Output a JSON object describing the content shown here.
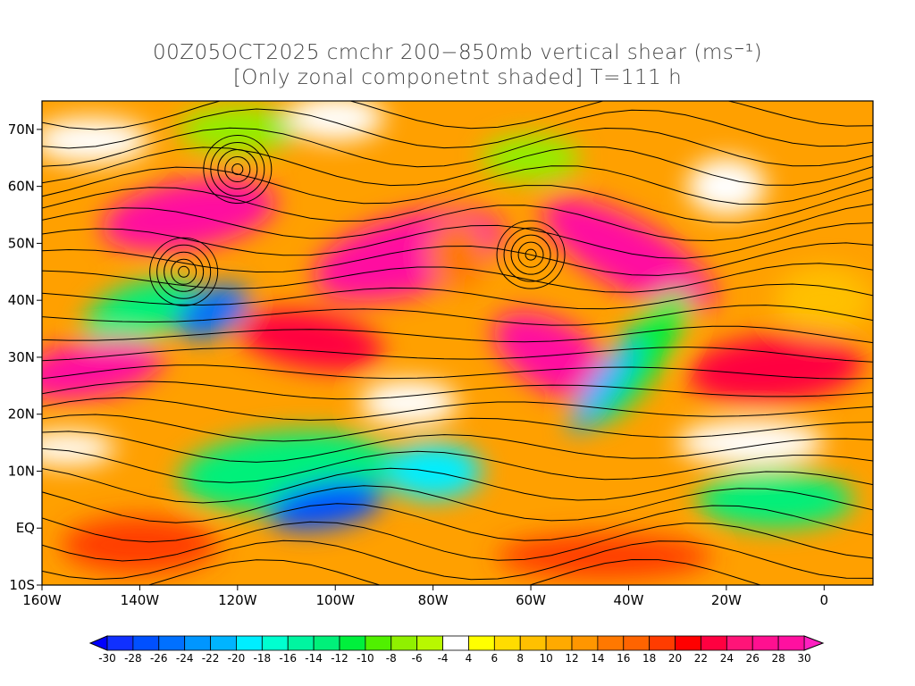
{
  "title": {
    "line1": "00Z05OCT2025 cmchr 200−850mb vertical shear (ms⁻¹)",
    "line2": "[Only zonal componetnt shaded] T=111 h"
  },
  "map": {
    "lon_range": [
      -160,
      10
    ],
    "lat_range": [
      -10,
      75
    ],
    "x_ticks": [
      {
        "value": -160,
        "label": "160W"
      },
      {
        "value": -140,
        "label": "140W"
      },
      {
        "value": -120,
        "label": "120W"
      },
      {
        "value": -100,
        "label": "100W"
      },
      {
        "value": -80,
        "label": "80W"
      },
      {
        "value": -60,
        "label": "60W"
      },
      {
        "value": -40,
        "label": "40W"
      },
      {
        "value": -20,
        "label": "20W"
      },
      {
        "value": 0,
        "label": "0"
      }
    ],
    "y_ticks": [
      {
        "value": 70,
        "label": "70N"
      },
      {
        "value": 60,
        "label": "60N"
      },
      {
        "value": 50,
        "label": "50N"
      },
      {
        "value": 40,
        "label": "40N"
      },
      {
        "value": 30,
        "label": "30N"
      },
      {
        "value": 20,
        "label": "20N"
      },
      {
        "value": 10,
        "label": "10N"
      },
      {
        "value": 0,
        "label": "EQ"
      },
      {
        "value": -10,
        "label": "10S"
      }
    ]
  },
  "colorbar": {
    "labels": [
      "-30",
      "-28",
      "-26",
      "-24",
      "-22",
      "-20",
      "-18",
      "-16",
      "-14",
      "-12",
      "-10",
      "-8",
      "-6",
      "-4",
      "4",
      "6",
      "8",
      "10",
      "12",
      "14",
      "16",
      "18",
      "20",
      "22",
      "24",
      "26",
      "28",
      "30"
    ],
    "colors": [
      "#1030ff",
      "#0050ff",
      "#0070ff",
      "#0096ff",
      "#00b4ff",
      "#00eeff",
      "#00ffd0",
      "#00f5a0",
      "#00f07a",
      "#00f03c",
      "#50f000",
      "#90f000",
      "#b8f800",
      "#ffffff",
      "#ffff00",
      "#ffdc00",
      "#ffc000",
      "#ffaa00",
      "#ff9600",
      "#ff7800",
      "#ff6400",
      "#ff3c00",
      "#ff0000",
      "#ff0040",
      "#ff1478",
      "#ff1090",
      "#ff10a0"
    ],
    "under_color": "#0000ff",
    "over_color": "#ff20c0"
  }
}
